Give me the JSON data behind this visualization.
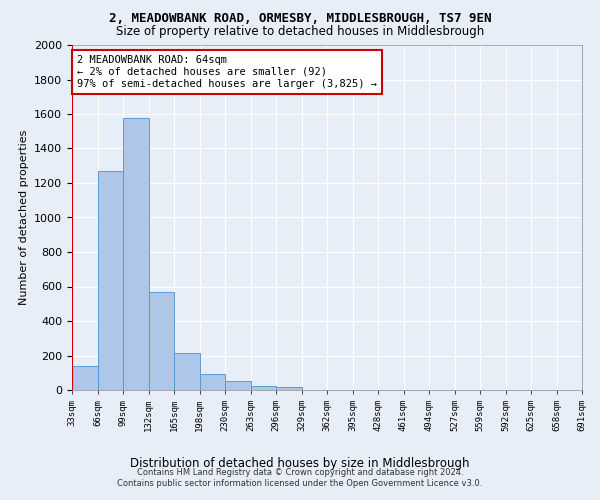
{
  "title1": "2, MEADOWBANK ROAD, ORMESBY, MIDDLESBROUGH, TS7 9EN",
  "title2": "Size of property relative to detached houses in Middlesbrough",
  "xlabel": "Distribution of detached houses by size in Middlesbrough",
  "ylabel": "Number of detached properties",
  "footer1": "Contains HM Land Registry data © Crown copyright and database right 2024.",
  "footer2": "Contains public sector information licensed under the Open Government Licence v3.0.",
  "annotation_line1": "2 MEADOWBANK ROAD: 64sqm",
  "annotation_line2": "← 2% of detached houses are smaller (92)",
  "annotation_line3": "97% of semi-detached houses are larger (3,825) →",
  "bar_values": [
    140,
    1270,
    1575,
    570,
    215,
    93,
    50,
    25,
    15,
    0,
    0,
    0,
    0,
    0,
    0,
    0,
    0,
    0,
    0,
    0
  ],
  "bar_labels": [
    "33sqm",
    "66sqm",
    "99sqm",
    "132sqm",
    "165sqm",
    "198sqm",
    "230sqm",
    "263sqm",
    "296sqm",
    "329sqm",
    "362sqm",
    "395sqm",
    "428sqm",
    "461sqm",
    "494sqm",
    "527sqm",
    "559sqm",
    "592sqm",
    "625sqm",
    "658sqm",
    "691sqm"
  ],
  "bar_color": "#aec6e8",
  "bar_edge_color": "#5b9bd5",
  "marker_color": "#cc0000",
  "ylim": [
    0,
    2000
  ],
  "yticks": [
    0,
    200,
    400,
    600,
    800,
    1000,
    1200,
    1400,
    1600,
    1800,
    2000
  ],
  "background_color": "#e8eef8",
  "plot_background": "#e8eef8",
  "annotation_box_color": "#cc0000",
  "grid_color": "#ffffff"
}
